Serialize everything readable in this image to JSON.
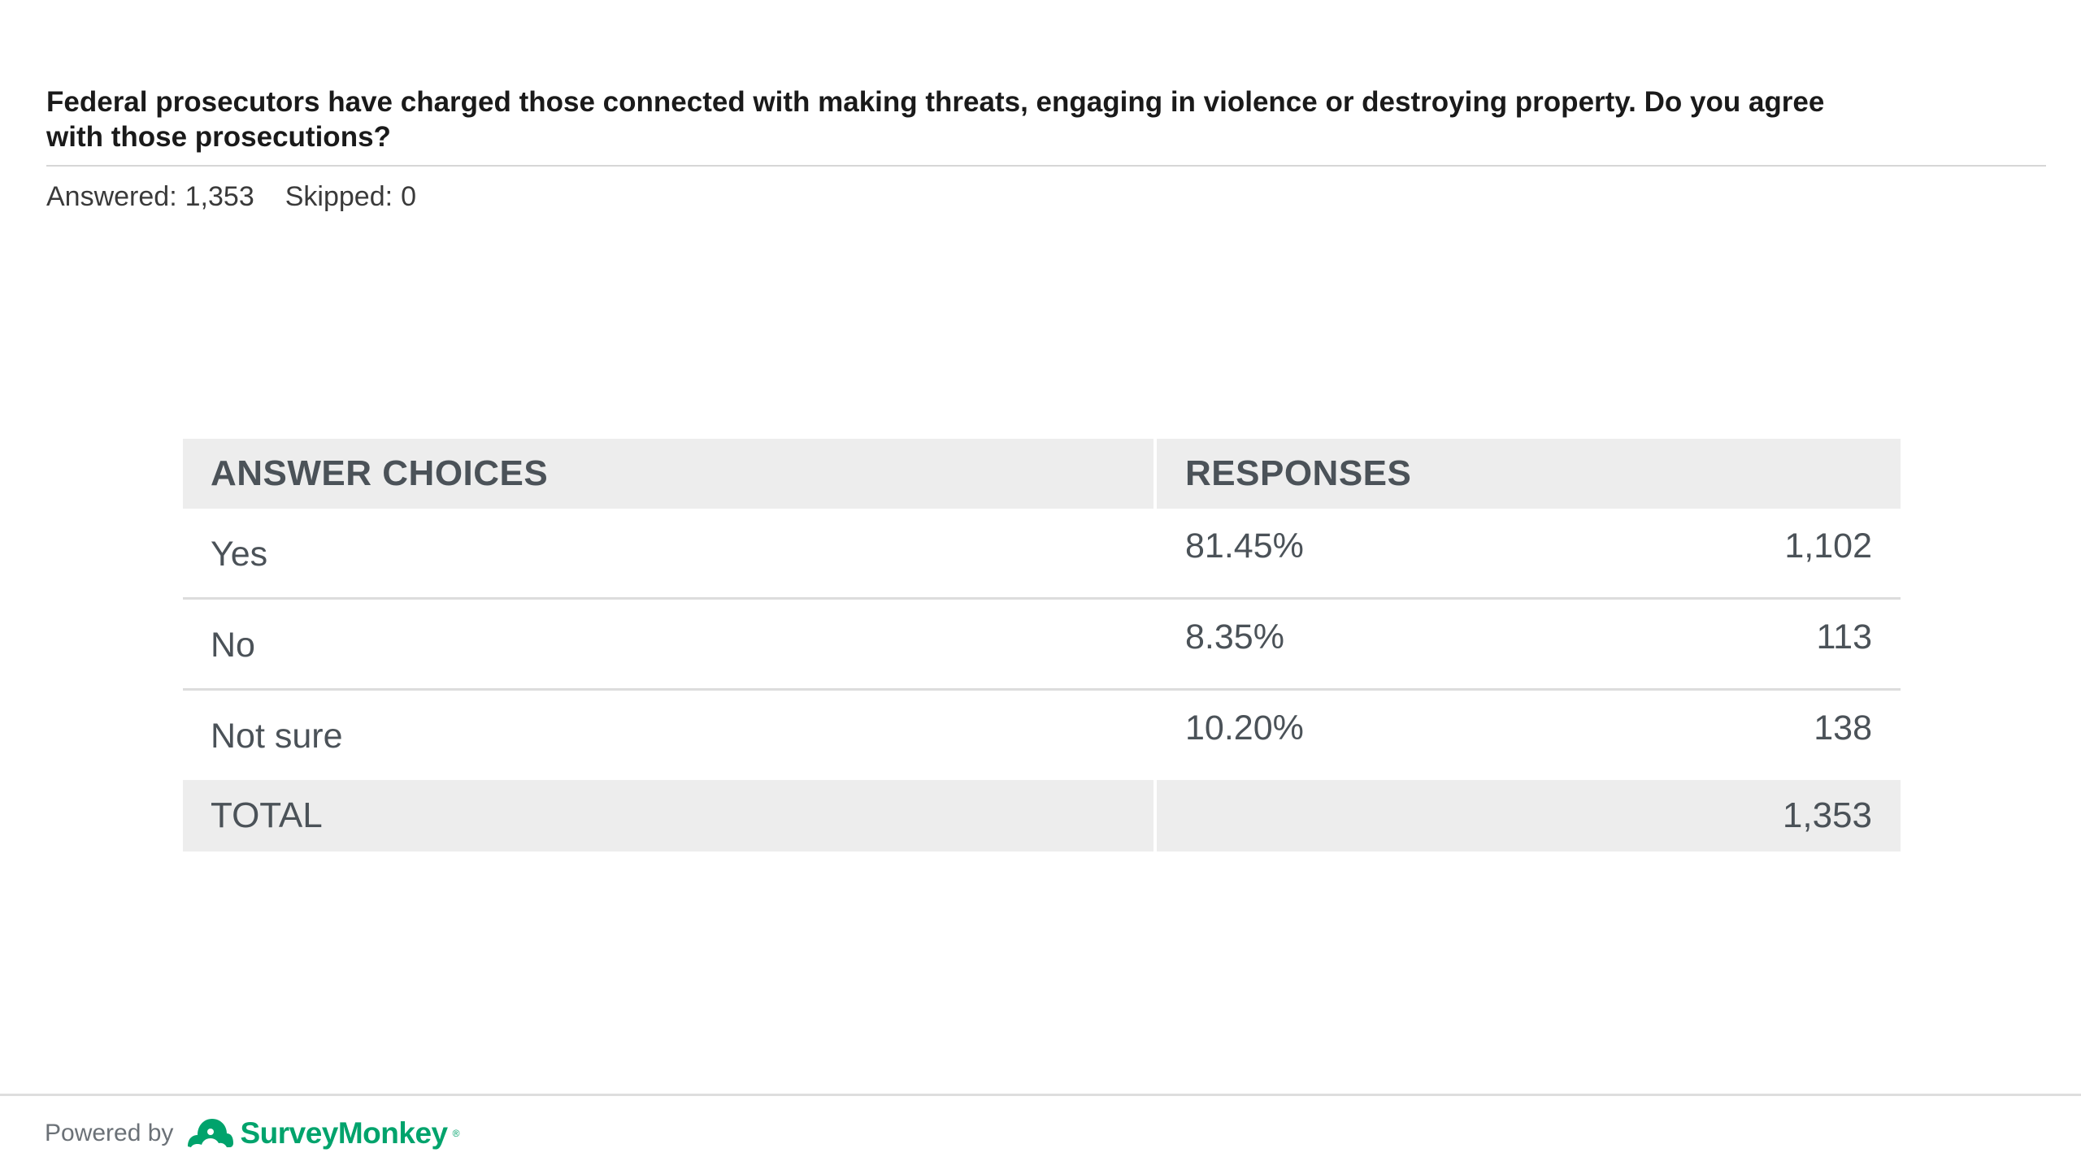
{
  "question": {
    "text": "Federal prosecutors have charged those connected with making threats, engaging in violence or destroying property. Do you agree with those prosecutions?"
  },
  "stats": {
    "answered_label": "Answered:",
    "answered_value": "1,353",
    "skipped_label": "Skipped:",
    "skipped_value": "0"
  },
  "table": {
    "headers": {
      "choices": "ANSWER CHOICES",
      "responses": "RESPONSES"
    },
    "rows": [
      {
        "choice": "Yes",
        "percent": "81.45%",
        "count": "1,102"
      },
      {
        "choice": "No",
        "percent": "8.35%",
        "count": "113"
      },
      {
        "choice": "Not sure",
        "percent": "10.20%",
        "count": "138"
      }
    ],
    "total": {
      "label": "TOTAL",
      "count": "1,353"
    }
  },
  "footer": {
    "powered_by": "Powered by",
    "brand": "SurveyMonkey",
    "brand_mark": "®",
    "logo_icon": "surveymonkey-logo-icon",
    "brand_color": "#00a36c"
  }
}
